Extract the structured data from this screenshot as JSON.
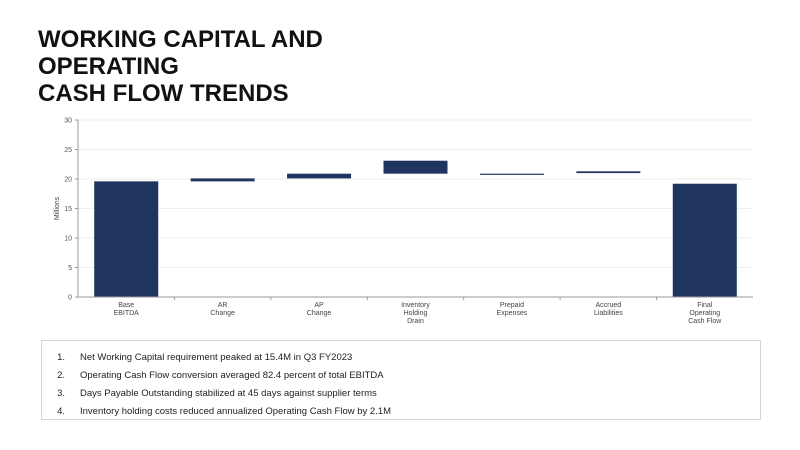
{
  "title_lines": [
    "WORKING CAPITAL AND",
    "OPERATING",
    "CASH FLOW TRENDS"
  ],
  "colors": {
    "bar": "#1f3560",
    "title": "#111111",
    "axis": "#999999",
    "grid": "#eeeeee"
  },
  "chart_data": {
    "type": "bar",
    "subtype": "waterfall",
    "ylabel": "Millions",
    "ylim": [
      0,
      30
    ],
    "yticks": [
      "0",
      "5",
      "10",
      "15",
      "20",
      "25",
      "30"
    ],
    "grid": true,
    "categories": [
      [
        "Base",
        "EBITDA"
      ],
      [
        "AR",
        "Change"
      ],
      [
        "AP",
        "Change"
      ],
      [
        "Inventory",
        "Holding",
        "Drain"
      ],
      [
        "Prepaid",
        "Expenses"
      ],
      [
        "Accrued",
        "Liabilities"
      ],
      [
        "Final",
        "Operating",
        "Cash Flow"
      ]
    ],
    "bars": [
      {
        "low": 0,
        "high": 19.6
      },
      {
        "low": 19.6,
        "high": 20.1
      },
      {
        "low": 20.1,
        "high": 20.9
      },
      {
        "low": 20.9,
        "high": 23.1
      },
      {
        "low": 20.7,
        "high": 20.9
      },
      {
        "low": 21.0,
        "high": 21.3
      },
      {
        "low": 0,
        "high": 19.2
      }
    ]
  },
  "notes": [
    {
      "num": "1.",
      "text": "Net Working Capital requirement peaked at 15.4M in Q3 FY2023"
    },
    {
      "num": "2.",
      "text": "Operating Cash Flow conversion averaged 82.4 percent of total EBITDA"
    },
    {
      "num": "3.",
      "text": "Days Payable Outstanding stabilized at 45 days against supplier terms"
    },
    {
      "num": "4.",
      "text": "Inventory holding costs reduced annualized Operating Cash Flow by 2.1M"
    }
  ]
}
